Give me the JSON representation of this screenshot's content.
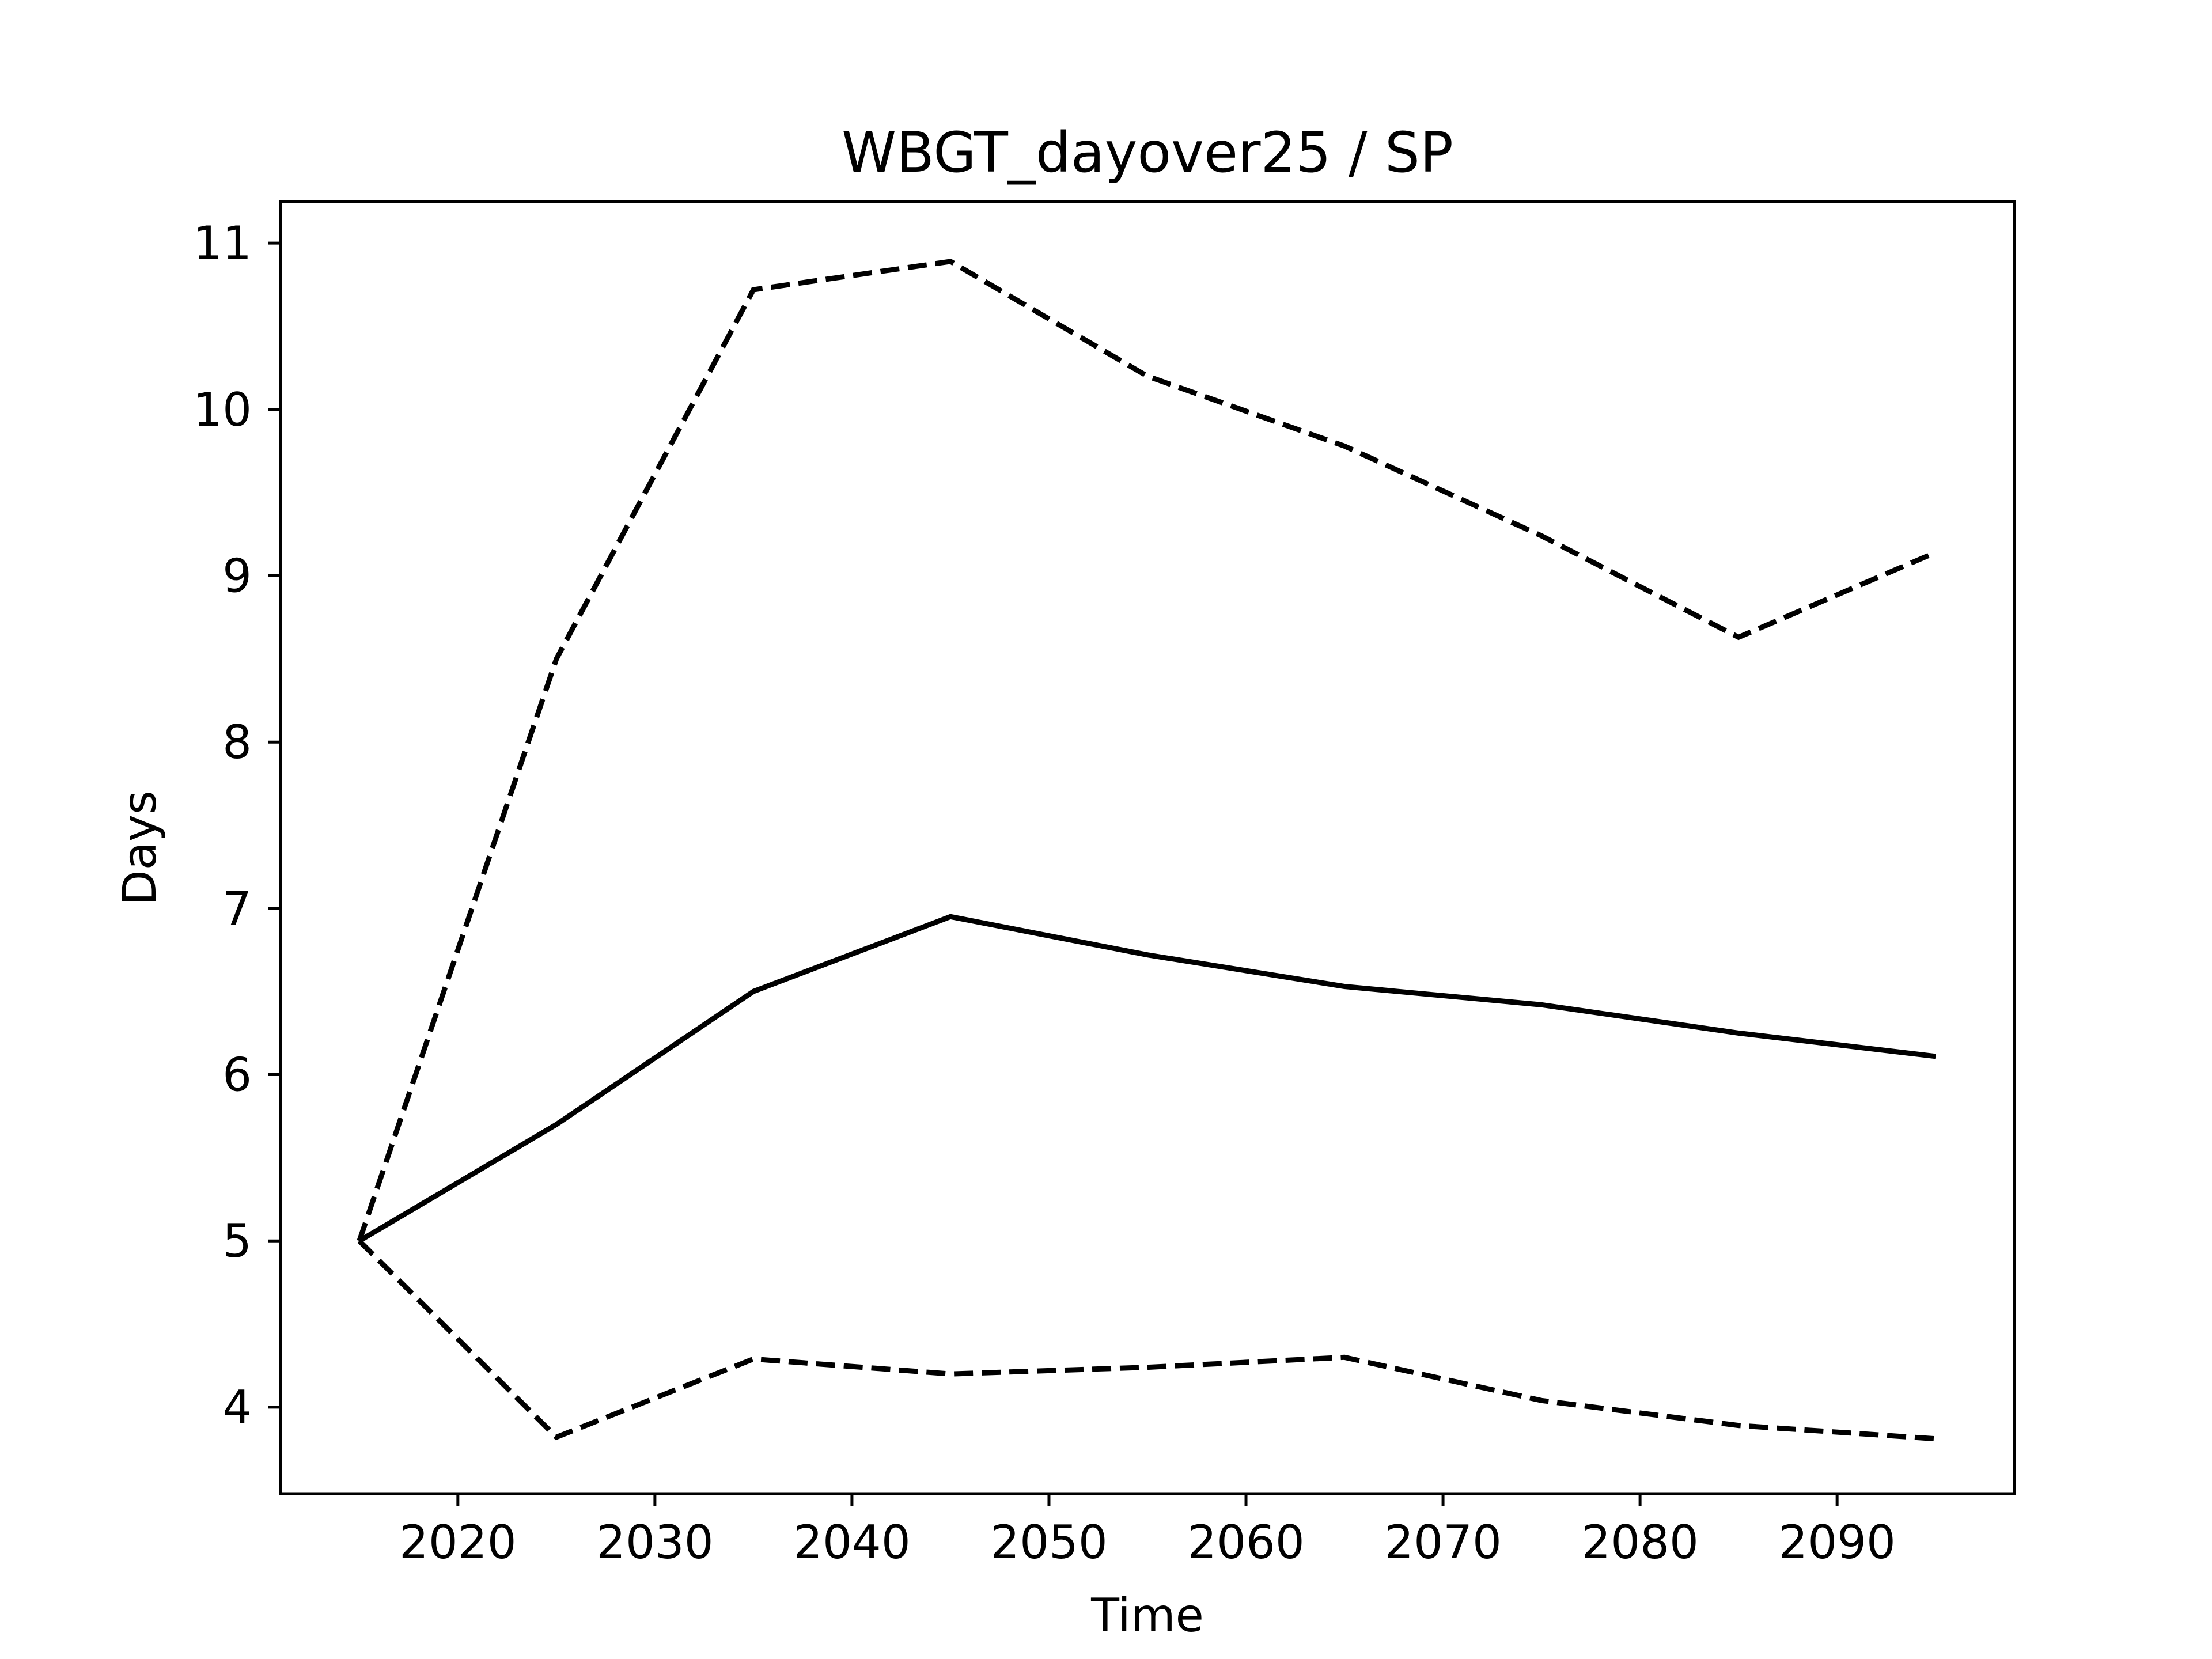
{
  "chart_data": {
    "type": "line",
    "title": "WBGT_dayover25 / SP",
    "xlabel": "Time",
    "ylabel": "Days",
    "xlim": [
      2011,
      2099
    ],
    "ylim": [
      3.48,
      11.25
    ],
    "xticks": [
      2020,
      2030,
      2040,
      2050,
      2060,
      2070,
      2080,
      2090
    ],
    "yticks": [
      4,
      5,
      6,
      7,
      8,
      9,
      10,
      11
    ],
    "grid": false,
    "x": [
      2015,
      2025,
      2035,
      2045,
      2055,
      2065,
      2075,
      2085,
      2095
    ],
    "series": [
      {
        "style": "solid",
        "color": "#000000",
        "values": [
          5.0,
          5.7,
          6.5,
          6.95,
          6.72,
          6.53,
          6.42,
          6.25,
          6.11
        ]
      },
      {
        "style": "dashed",
        "color": "#000000",
        "values": [
          5.0,
          8.5,
          10.72,
          10.89,
          10.2,
          9.78,
          9.24,
          8.63,
          9.14
        ]
      },
      {
        "style": "dashed",
        "color": "#000000",
        "values": [
          5.0,
          3.82,
          4.29,
          4.2,
          4.24,
          4.3,
          4.04,
          3.89,
          3.81
        ]
      }
    ]
  }
}
